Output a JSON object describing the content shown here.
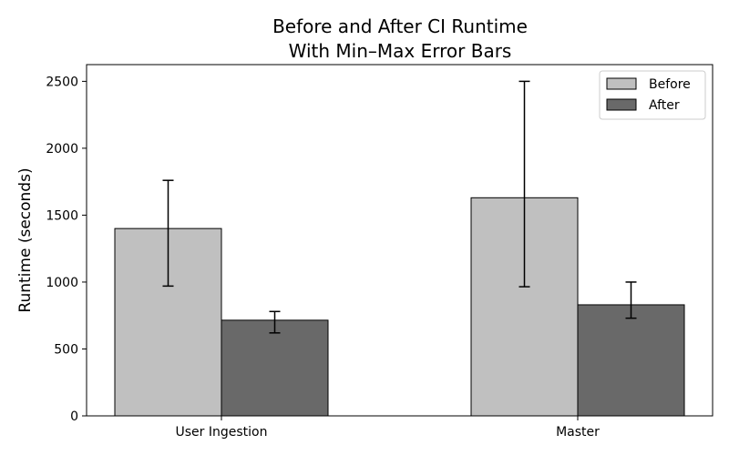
{
  "chart_data": {
    "type": "bar",
    "title_lines": [
      "Before and After CI Runtime",
      "With Min–Max Error Bars"
    ],
    "xlabel": "",
    "ylabel": "Runtime (seconds)",
    "categories": [
      "User Ingestion",
      "Master"
    ],
    "ylim": [
      0,
      2625
    ],
    "yticks": [
      0,
      500,
      1000,
      1500,
      2000,
      2500
    ],
    "grid": false,
    "legend_position": "top-right",
    "series": [
      {
        "name": "Before",
        "color": "#c0c0c0",
        "values": [
          1400,
          1630
        ],
        "min": [
          970,
          965
        ],
        "max": [
          1760,
          2500
        ]
      },
      {
        "name": "After",
        "color": "#696969",
        "values": [
          715,
          830
        ],
        "min": [
          620,
          730
        ],
        "max": [
          780,
          1000
        ]
      }
    ]
  }
}
